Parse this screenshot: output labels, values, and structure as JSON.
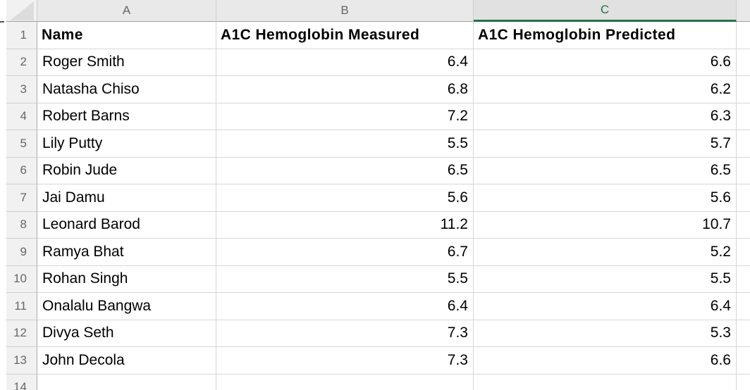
{
  "sheet": {
    "selected_column": "C",
    "colors": {
      "selection_green": "#217346",
      "header_bg": "#e9e9e9",
      "gridline": "#d6d6d6"
    },
    "column_headers": [
      "A",
      "B",
      "C",
      ""
    ],
    "header_row": {
      "num": "1",
      "name": "Name",
      "measured": "A1C Hemoglobin Measured",
      "predicted": "A1C Hemoglobin Predicted"
    },
    "rows": [
      {
        "num": "2",
        "name": "Roger Smith",
        "measured": "6.4",
        "predicted": "6.6"
      },
      {
        "num": "3",
        "name": "Natasha Chiso",
        "measured": "6.8",
        "predicted": "6.2"
      },
      {
        "num": "4",
        "name": "Robert Barns",
        "measured": "7.2",
        "predicted": "6.3"
      },
      {
        "num": "5",
        "name": "Lily Putty",
        "measured": "5.5",
        "predicted": "5.7"
      },
      {
        "num": "6",
        "name": "Robin Jude",
        "measured": "6.5",
        "predicted": "6.5"
      },
      {
        "num": "7",
        "name": "Jai Damu",
        "measured": "5.6",
        "predicted": "5.6"
      },
      {
        "num": "8",
        "name": "Leonard Barod",
        "measured": "11.2",
        "predicted": "10.7"
      },
      {
        "num": "9",
        "name": "Ramya Bhat",
        "measured": "6.7",
        "predicted": "5.2"
      },
      {
        "num": "10",
        "name": "Rohan Singh",
        "measured": "5.5",
        "predicted": "5.5"
      },
      {
        "num": "11",
        "name": "Onalalu Bangwa",
        "measured": "6.4",
        "predicted": "6.4"
      },
      {
        "num": "12",
        "name": "Divya Seth",
        "measured": "7.3",
        "predicted": "5.3"
      },
      {
        "num": "13",
        "name": "John Decola",
        "measured": "7.3",
        "predicted": "6.6"
      },
      {
        "num": "14",
        "name": "",
        "measured": "",
        "predicted": ""
      }
    ]
  }
}
